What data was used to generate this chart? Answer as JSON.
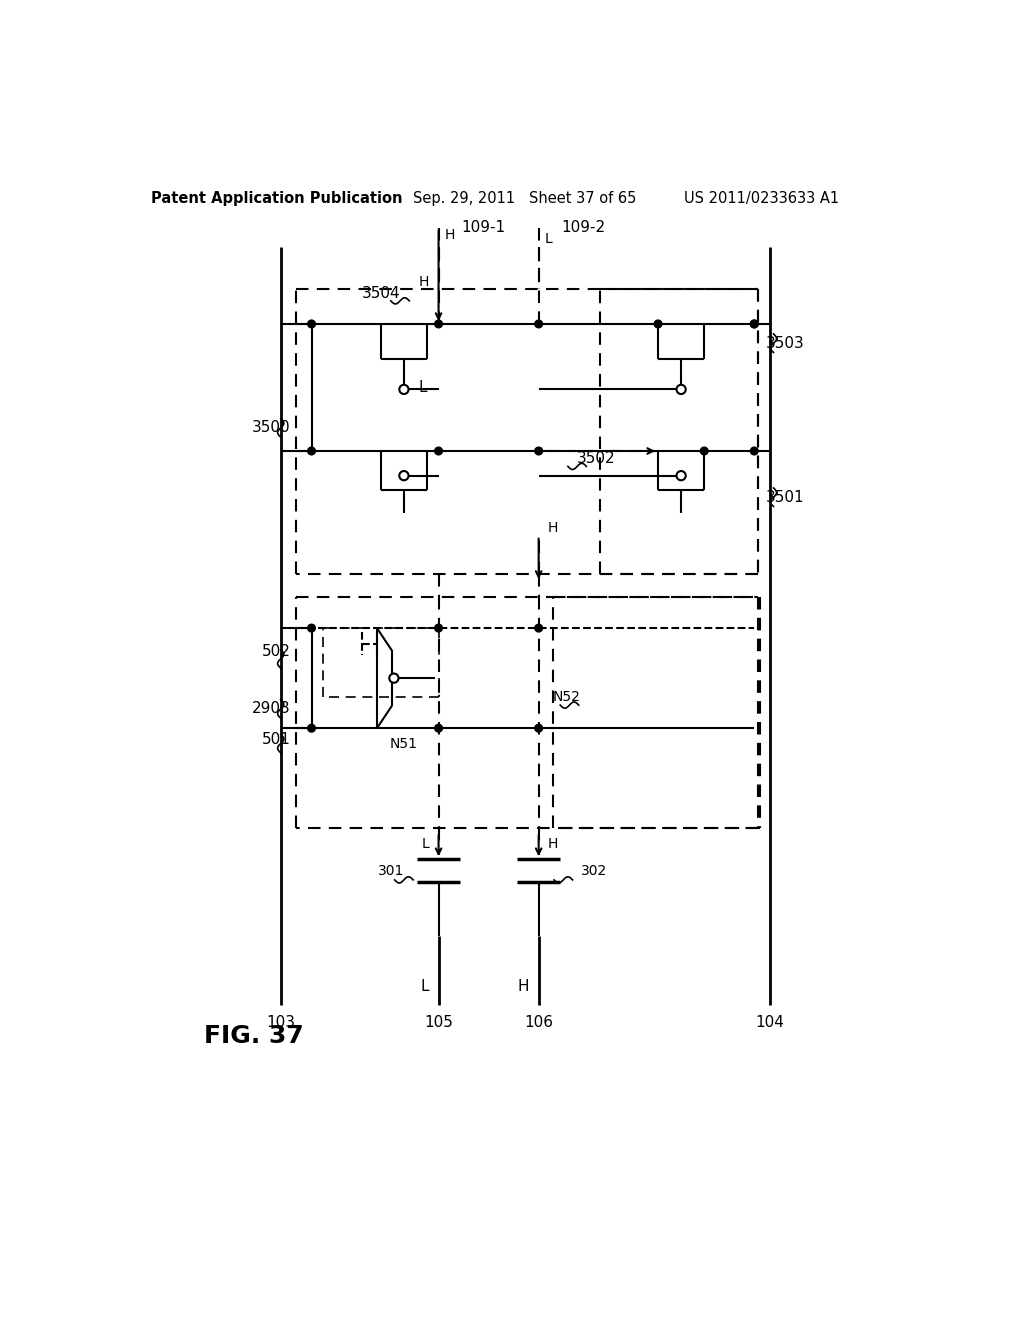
{
  "background_color": "#ffffff",
  "header_left": "Patent Application Publication",
  "header_mid": "Sep. 29, 2011   Sheet 37 of 65",
  "header_right": "US 2011/0233633 A1",
  "fig_label": "FIG. 37"
}
